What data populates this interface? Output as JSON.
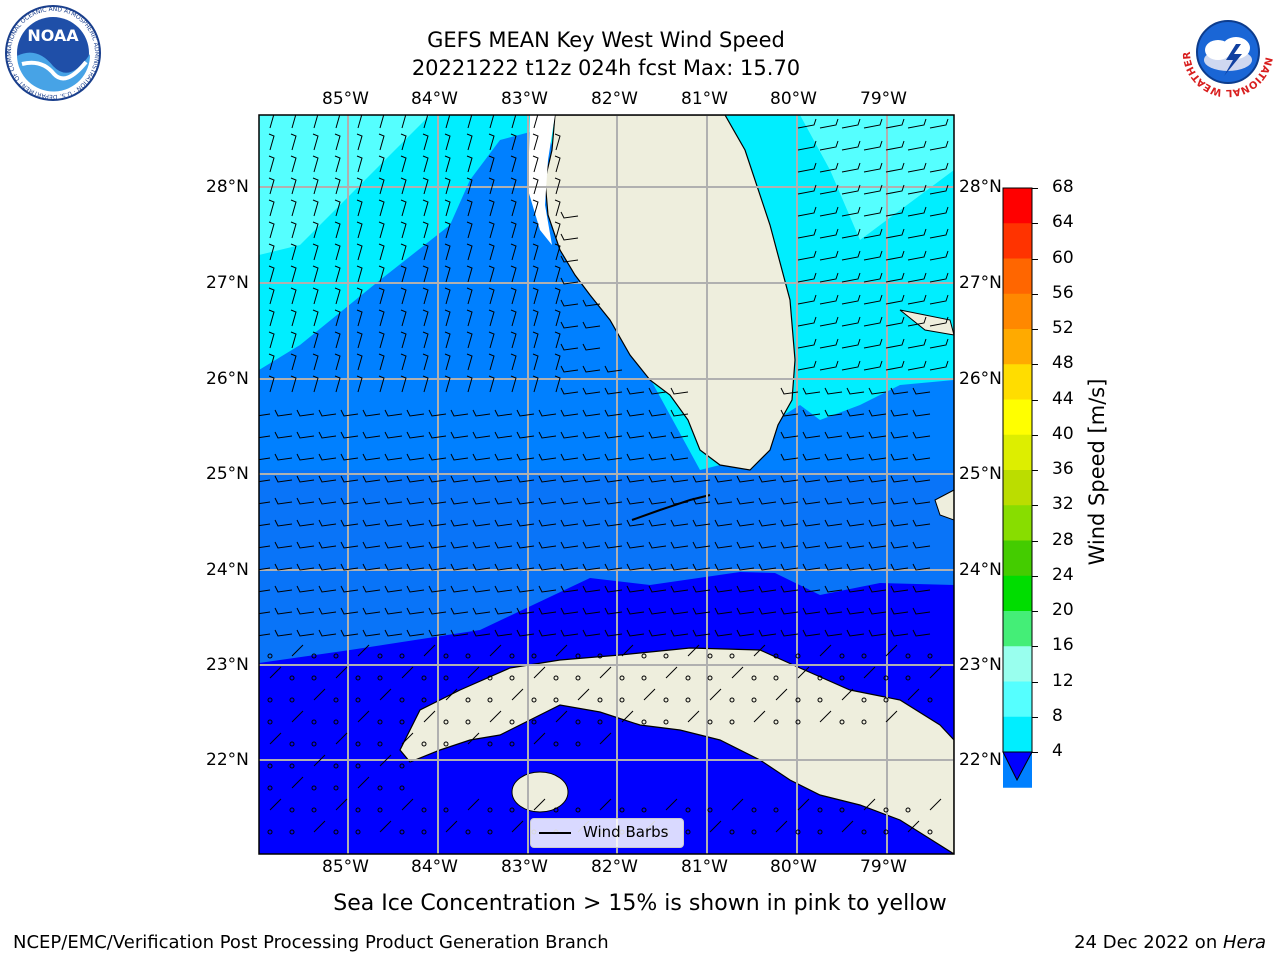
{
  "header": {
    "title_line1": "GEFS MEAN Key West Wind Speed",
    "title_line2": "20221222 t12z 024h fcst   Max: 15.70"
  },
  "logos": {
    "noaa_text": "NOAA",
    "noaa_ring": "NATIONAL OCEANIC AND ATMOSPHERIC ADMINISTRATION · U.S. DEPARTMENT OF COMMERCE",
    "nws_ring": "NATIONAL WEATHER SERVICE"
  },
  "map": {
    "lon_labels": [
      "85°W",
      "84°W",
      "83°W",
      "82°W",
      "81°W",
      "80°W",
      "79°W"
    ],
    "lat_labels": [
      "28°N",
      "27°N",
      "26°N",
      "25°N",
      "24°N",
      "23°N",
      "22°N"
    ],
    "legend_label": "Wind Barbs"
  },
  "colorbar": {
    "label": "Wind Speed [m/s]",
    "ticks": [
      "68",
      "64",
      "60",
      "56",
      "52",
      "48",
      "44",
      "40",
      "36",
      "32",
      "28",
      "24",
      "20",
      "16",
      "12",
      "8",
      "4"
    ],
    "colors": [
      "#ff0000",
      "#ff3300",
      "#ff6600",
      "#ff8800",
      "#ffaa00",
      "#ffdd00",
      "#ffff00",
      "#ddee00",
      "#bbdd00",
      "#88dd00",
      "#44cc00",
      "#00dd00",
      "#44ee77",
      "#99ffee",
      "#55ffff",
      "#00eeff",
      "#0080ff"
    ],
    "underflow_color": "#0000ff"
  },
  "caption": "Sea Ice Concentration > 15% is shown in pink to yellow",
  "footer": {
    "left": "NCEP/EMC/Verification Post Processing Product Generation Branch",
    "date": "24 Dec 2022 on ",
    "machine": "Hera"
  }
}
